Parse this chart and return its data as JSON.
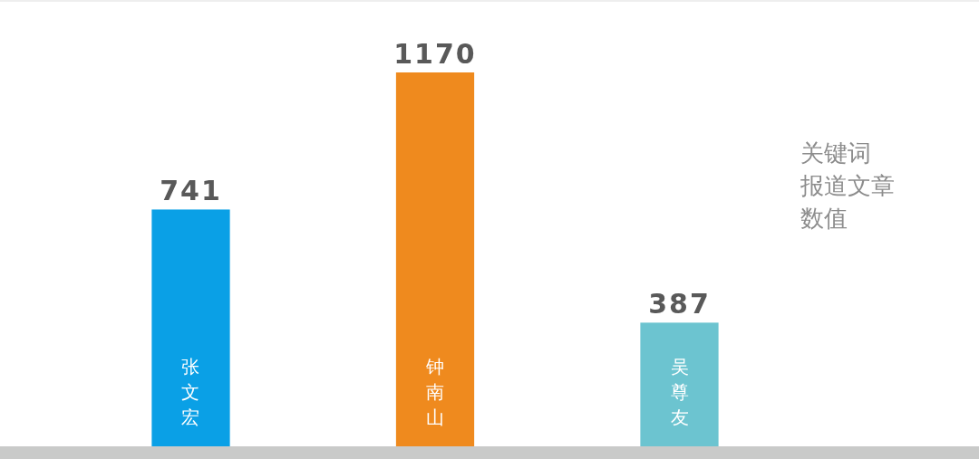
{
  "chart_data": {
    "type": "bar",
    "categories": [
      "张文宏",
      "钟南山",
      "吴尊友"
    ],
    "values": [
      741,
      1170,
      387
    ],
    "colors": [
      "#0aa0e6",
      "#ef8a1e",
      "#6cc4d0"
    ],
    "data_labels": true,
    "annotations": [
      "关键词",
      "报道文章",
      "数值"
    ]
  }
}
